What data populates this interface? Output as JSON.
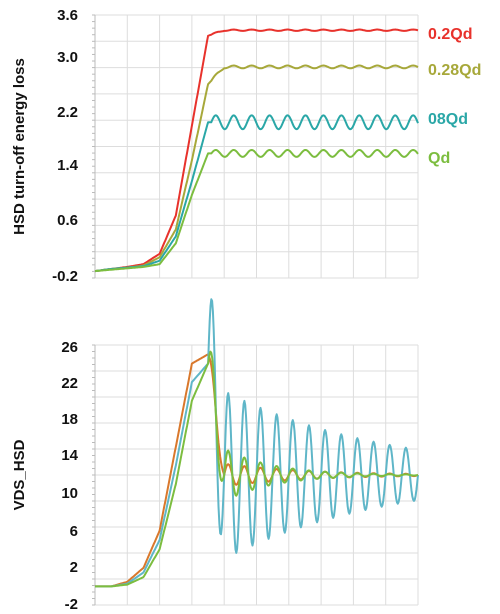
{
  "colors": {
    "red": "#e8322c",
    "olive": "#a7a83a",
    "teal": "#2aa7a7",
    "green": "#7cbd3f",
    "orange": "#d9782c",
    "lightblue": "#5fb6c8",
    "grid": "#dddddd"
  },
  "chart_data": [
    {
      "type": "line",
      "title": "",
      "xlabel": "",
      "ylabel": "HSD turn-off energy loss",
      "yticks": [
        "3.6",
        "3.0",
        "2.2",
        "1.4",
        "0.6",
        "-0.2"
      ],
      "ylim": [
        -0.2,
        3.6
      ],
      "grid": true,
      "legend_position": "right",
      "x": [
        0,
        0.05,
        0.1,
        0.15,
        0.2,
        0.25,
        0.3,
        0.35,
        0.4,
        0.45,
        0.5,
        1.0
      ],
      "series": [
        {
          "name": "0.2Qd",
          "color": "red",
          "values": [
            -0.1,
            -0.07,
            -0.04,
            0.0,
            0.15,
            0.7,
            2.0,
            3.3,
            3.38,
            3.38,
            3.38,
            3.38
          ],
          "ripple": 0.01
        },
        {
          "name": "0.28Qd",
          "color": "olive",
          "values": [
            -0.1,
            -0.07,
            -0.05,
            -0.02,
            0.1,
            0.5,
            1.5,
            2.6,
            2.85,
            2.85,
            2.85,
            2.85
          ],
          "ripple": 0.02
        },
        {
          "name": "08Qd",
          "color": "teal",
          "values": [
            -0.1,
            -0.07,
            -0.05,
            -0.03,
            0.05,
            0.4,
            1.2,
            2.05,
            2.05,
            2.05,
            2.05,
            2.05
          ],
          "ripple": 0.1
        },
        {
          "name": "Qd",
          "color": "green",
          "values": [
            -0.1,
            -0.08,
            -0.06,
            -0.04,
            0.0,
            0.3,
            1.0,
            1.6,
            1.6,
            1.6,
            1.6,
            1.6
          ],
          "ripple": 0.05
        }
      ]
    },
    {
      "type": "line",
      "title": "",
      "xlabel": "",
      "ylabel": "VDS_HSD",
      "yticks": [
        "26",
        "22",
        "18",
        "14",
        "10",
        "6",
        "2",
        "-2"
      ],
      "ylim": [
        -2,
        26
      ],
      "grid": true,
      "legend_position": "none",
      "x": [
        0,
        0.05,
        0.1,
        0.15,
        0.2,
        0.25,
        0.3,
        0.35,
        0.4,
        0.5,
        1.0
      ],
      "series": [
        {
          "color": "orange",
          "values": [
            0,
            0,
            0.5,
            2,
            6,
            15,
            24,
            25,
            12,
            12,
            12
          ],
          "ripple": 1.5,
          "decay": 0.25
        },
        {
          "color": "lightblue",
          "values": [
            0,
            0,
            0.3,
            1.5,
            5,
            13,
            22,
            24,
            12,
            12,
            12
          ],
          "ripple": 10,
          "decay": 0.5
        },
        {
          "color": "green",
          "values": [
            0,
            0,
            0.2,
            1.0,
            4,
            11,
            20,
            24,
            12,
            12,
            12
          ],
          "ripple": 4,
          "decay": 0.15
        }
      ]
    }
  ]
}
